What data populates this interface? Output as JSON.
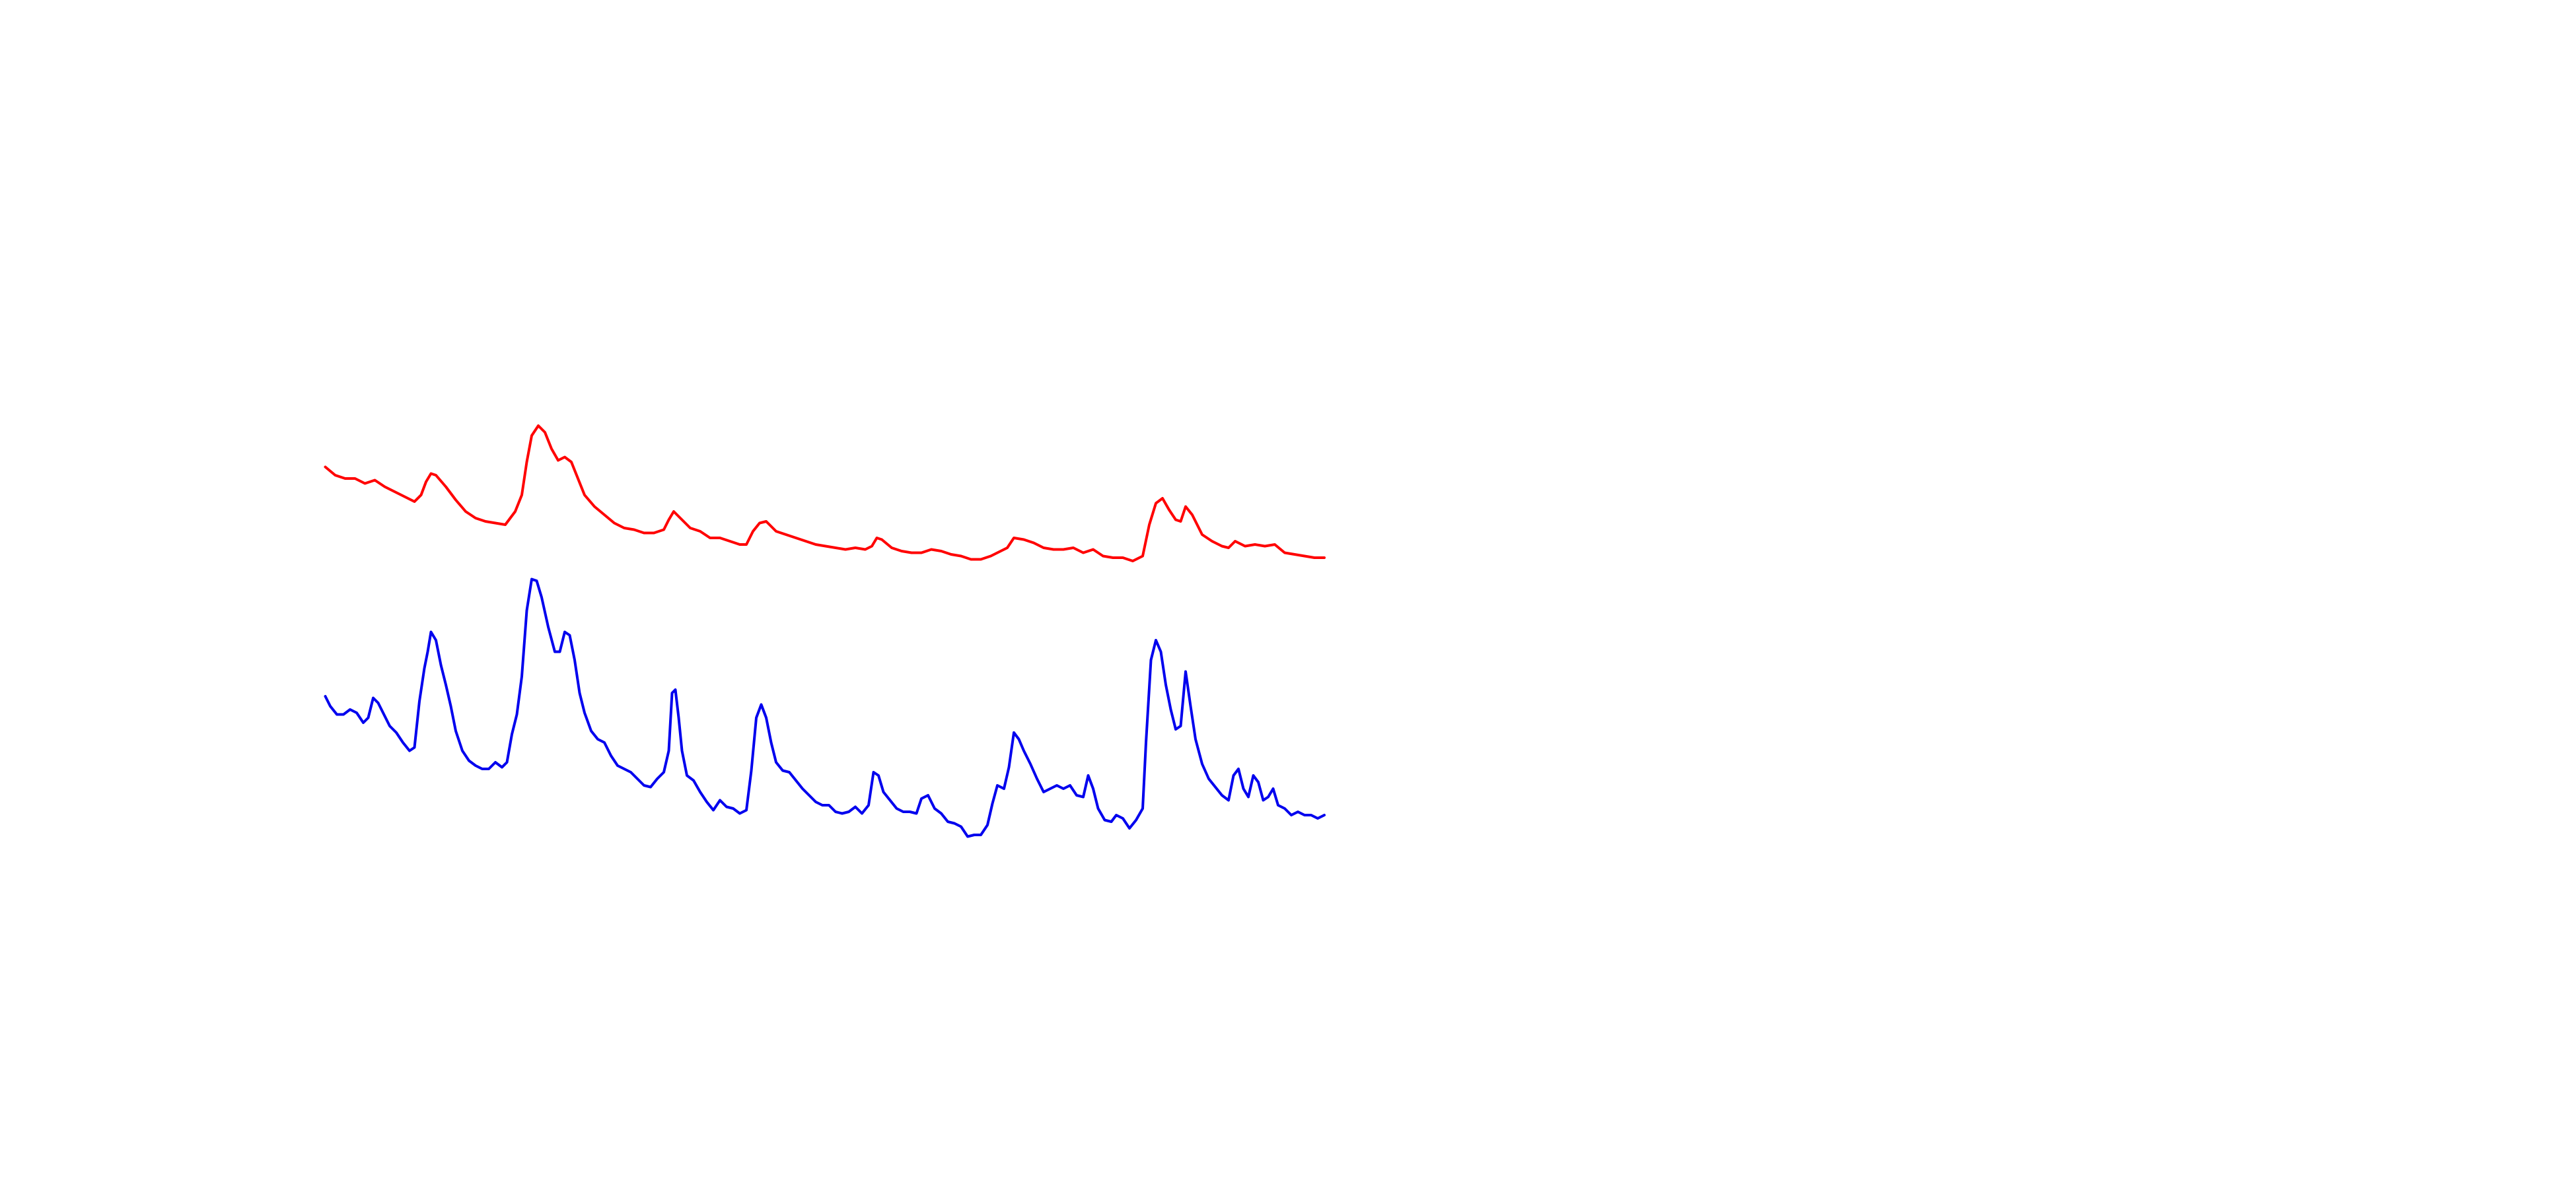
{
  "chart_data": {
    "type": "line",
    "xlim": [
      0,
      605
    ],
    "ylim": [
      0,
      280
    ],
    "series": [
      {
        "color": "#ff0000",
        "x": [
          0,
          6,
          12,
          18,
          24,
          30,
          36,
          42,
          48,
          54,
          58,
          61,
          64,
          67,
          73,
          79,
          85,
          91,
          97,
          103,
          109,
          115,
          119,
          122,
          125,
          129,
          133,
          137,
          141,
          145,
          149,
          153,
          157,
          163,
          169,
          175,
          181,
          187,
          193,
          199,
          205,
          208,
          211,
          215,
          221,
          227,
          233,
          239,
          245,
          251,
          255,
          259,
          263,
          267,
          273,
          279,
          285,
          291,
          297,
          303,
          309,
          315,
          321,
          327,
          331,
          334,
          337,
          343,
          349,
          355,
          361,
          367,
          373,
          379,
          385,
          391,
          397,
          403,
          409,
          413,
          417,
          423,
          429,
          435,
          441,
          447,
          453,
          459,
          465,
          471,
          477,
          483,
          489,
          495,
          499,
          503,
          507,
          511,
          515,
          518,
          521,
          525,
          531,
          537,
          543,
          547,
          551,
          557,
          563,
          569,
          575,
          581,
          587,
          593,
          599,
          605
        ],
        "values": [
          237,
          232,
          230,
          230,
          227,
          229,
          225,
          222,
          219,
          216,
          220,
          228,
          233,
          232,
          225,
          217,
          210,
          206,
          204,
          203,
          202,
          210,
          220,
          240,
          256,
          262,
          258,
          248,
          241,
          243,
          240,
          230,
          220,
          213,
          208,
          203,
          200,
          199,
          197,
          197,
          199,
          205,
          210,
          206,
          200,
          198,
          194,
          194,
          192,
          190,
          190,
          198,
          203,
          204,
          198,
          196,
          194,
          192,
          190,
          189,
          188,
          187,
          188,
          187,
          189,
          194,
          193,
          188,
          186,
          185,
          185,
          187,
          186,
          184,
          183,
          181,
          181,
          183,
          186,
          188,
          194,
          193,
          191,
          188,
          187,
          187,
          188,
          185,
          187,
          183,
          182,
          182,
          180,
          183,
          202,
          215,
          218,
          211,
          205,
          204,
          213,
          208,
          196,
          192,
          189,
          188,
          192,
          189,
          190,
          189,
          190,
          185,
          184,
          183,
          182,
          182
        ]
      },
      {
        "color": "#0000ee",
        "x": [
          0,
          3,
          7,
          11,
          15,
          19,
          23,
          26,
          29,
          32,
          35,
          39,
          43,
          47,
          51,
          54,
          57,
          60,
          62,
          64,
          67,
          70,
          73,
          76,
          79,
          83,
          87,
          91,
          95,
          99,
          103,
          107,
          110,
          113,
          116,
          119,
          122,
          125,
          128,
          131,
          135,
          139,
          142,
          145,
          148,
          151,
          154,
          157,
          161,
          165,
          169,
          173,
          177,
          181,
          185,
          189,
          193,
          197,
          201,
          205,
          208,
          210,
          212,
          214,
          216,
          219,
          223,
          227,
          231,
          235,
          239,
          243,
          247,
          251,
          255,
          258,
          261,
          264,
          267,
          270,
          273,
          277,
          281,
          285,
          289,
          293,
          297,
          301,
          305,
          309,
          313,
          317,
          321,
          325,
          329,
          332,
          335,
          338,
          342,
          346,
          350,
          354,
          358,
          361,
          365,
          369,
          373,
          377,
          381,
          385,
          389,
          393,
          397,
          401,
          404,
          407,
          411,
          414,
          417,
          420,
          423,
          427,
          431,
          435,
          439,
          443,
          447,
          451,
          455,
          459,
          462,
          465,
          468,
          472,
          476,
          479,
          483,
          487,
          491,
          495,
          497,
          500,
          503,
          506,
          509,
          512,
          515,
          518,
          521,
          524,
          527,
          531,
          535,
          539,
          543,
          547,
          550,
          553,
          556,
          559,
          562,
          565,
          568,
          571,
          574,
          577,
          581,
          585,
          589,
          593,
          597,
          601,
          605
        ],
        "values": [
          98,
          92,
          87,
          87,
          90,
          88,
          82,
          85,
          97,
          94,
          88,
          80,
          76,
          70,
          65,
          67,
          95,
          115,
          125,
          137,
          132,
          117,
          105,
          92,
          77,
          65,
          59,
          56,
          54,
          54,
          58,
          55,
          58,
          75,
          87,
          110,
          150,
          169,
          168,
          158,
          140,
          125,
          125,
          137,
          135,
          120,
          100,
          88,
          77,
          72,
          70,
          62,
          56,
          54,
          52,
          48,
          44,
          43,
          48,
          52,
          65,
          100,
          102,
          85,
          65,
          50,
          47,
          40,
          34,
          29,
          35,
          31,
          30,
          27,
          29,
          53,
          85,
          93,
          85,
          70,
          58,
          53,
          52,
          47,
          42,
          38,
          34,
          32,
          32,
          28,
          27,
          28,
          31,
          27,
          32,
          52,
          50,
          40,
          35,
          30,
          28,
          28,
          27,
          36,
          38,
          30,
          27,
          22,
          21,
          19,
          13,
          14,
          14,
          20,
          33,
          44,
          42,
          55,
          76,
          72,
          65,
          57,
          48,
          40,
          42,
          44,
          42,
          44,
          38,
          37,
          50,
          42,
          30,
          23,
          22,
          26,
          24,
          18,
          23,
          30,
          70,
          120,
          132,
          125,
          105,
          90,
          78,
          80,
          113,
          92,
          72,
          57,
          48,
          43,
          38,
          35,
          50,
          54,
          42,
          37,
          50,
          46,
          35,
          37,
          42,
          32,
          30,
          26,
          28,
          26,
          26,
          24,
          26
        ]
      }
    ]
  }
}
